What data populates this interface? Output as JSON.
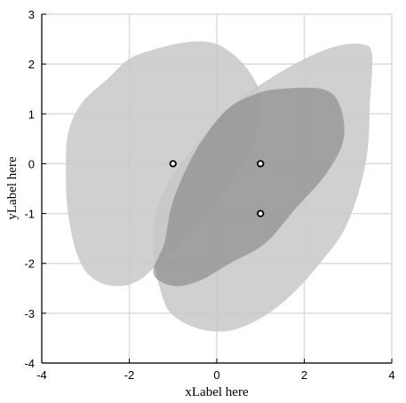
{
  "chart_data": {
    "type": "area",
    "title": "",
    "xlabel": "xLabel here",
    "ylabel": "yLabel here",
    "xlim": [
      -4,
      4
    ],
    "ylim": [
      -4,
      3
    ],
    "xticks": [
      -4,
      -2,
      0,
      2,
      4
    ],
    "yticks": [
      -4,
      -3,
      -2,
      -1,
      0,
      1,
      2,
      3
    ],
    "xtick_labels": [
      "-4",
      "-2",
      "0",
      "2",
      "4"
    ],
    "ytick_labels": [
      "-4",
      "-3",
      "-2",
      "-1",
      "0",
      "1",
      "2",
      "3"
    ],
    "grid": true,
    "regions": [
      {
        "color": "#c8c8c8",
        "opacity": 0.85,
        "outline": [
          [
            -3.4,
            0.6
          ],
          [
            -3.1,
            1.2
          ],
          [
            -2.5,
            1.7
          ],
          [
            -2.0,
            2.1
          ],
          [
            -1.4,
            2.3
          ],
          [
            -0.6,
            2.45
          ],
          [
            0.0,
            2.4
          ],
          [
            0.5,
            2.1
          ],
          [
            0.85,
            1.7
          ],
          [
            1.0,
            1.3
          ],
          [
            0.9,
            0.6
          ],
          [
            0.6,
            0.0
          ],
          [
            0.15,
            -0.6
          ],
          [
            -0.45,
            -1.2
          ],
          [
            -1.1,
            -1.8
          ],
          [
            -1.8,
            -2.35
          ],
          [
            -2.4,
            -2.45
          ],
          [
            -2.9,
            -2.25
          ],
          [
            -3.2,
            -1.8
          ],
          [
            -3.4,
            -1.0
          ],
          [
            -3.45,
            -0.2
          ]
        ]
      },
      {
        "color": "#c8c8c8",
        "opacity": 0.85,
        "outline": [
          [
            -1.4,
            -1.0
          ],
          [
            -1.05,
            -0.3
          ],
          [
            -0.45,
            0.4
          ],
          [
            0.4,
            1.2
          ],
          [
            1.2,
            1.7
          ],
          [
            2.0,
            2.1
          ],
          [
            2.7,
            2.35
          ],
          [
            3.3,
            2.4
          ],
          [
            3.55,
            2.2
          ],
          [
            3.5,
            1.2
          ],
          [
            3.45,
            0.3
          ],
          [
            3.25,
            -0.55
          ],
          [
            2.9,
            -1.35
          ],
          [
            2.4,
            -1.95
          ],
          [
            1.8,
            -2.55
          ],
          [
            1.1,
            -3.05
          ],
          [
            0.3,
            -3.35
          ],
          [
            -0.45,
            -3.3
          ],
          [
            -1.05,
            -3.0
          ],
          [
            -1.3,
            -2.5
          ],
          [
            -1.45,
            -1.8
          ]
        ]
      },
      {
        "color": "#7a7a7a",
        "opacity": 0.55,
        "outline": [
          [
            -1.45,
            -2.2
          ],
          [
            -1.2,
            -1.6
          ],
          [
            -1.05,
            -0.9
          ],
          [
            -0.8,
            -0.3
          ],
          [
            -0.35,
            0.45
          ],
          [
            0.25,
            1.1
          ],
          [
            0.9,
            1.4
          ],
          [
            1.45,
            1.5
          ],
          [
            2.4,
            1.5
          ],
          [
            2.8,
            1.2
          ],
          [
            2.9,
            0.5
          ],
          [
            2.5,
            -0.2
          ],
          [
            1.8,
            -0.9
          ],
          [
            1.1,
            -1.6
          ],
          [
            0.3,
            -2.0
          ],
          [
            -0.4,
            -2.35
          ],
          [
            -1.0,
            -2.45
          ]
        ]
      }
    ],
    "points": [
      {
        "x": -1,
        "y": 0
      },
      {
        "x": 1,
        "y": 0
      },
      {
        "x": 1,
        "y": -1
      }
    ]
  }
}
